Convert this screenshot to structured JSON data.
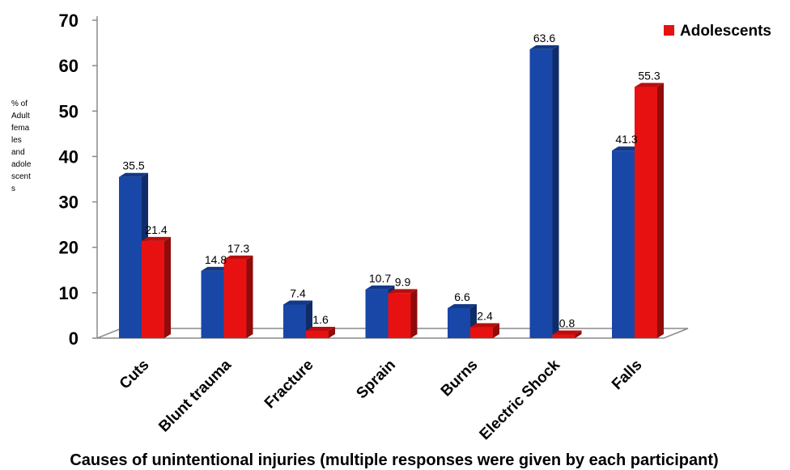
{
  "chart_data": {
    "type": "bar",
    "categories": [
      "Cuts",
      "Blunt trauma",
      "Fracture",
      "Sprain",
      "Burns",
      "Electric Shock",
      "Falls"
    ],
    "series": [
      {
        "name": "",
        "color": "#1847a8",
        "values": [
          35.5,
          14.8,
          7.4,
          10.7,
          6.6,
          63.6,
          41.3
        ]
      },
      {
        "name": "Adolescents",
        "color": "#e81111",
        "values": [
          21.4,
          17.3,
          1.6,
          9.9,
          2.4,
          0.8,
          55.3
        ]
      }
    ],
    "data_labels": [
      [
        "35.5",
        "14.8",
        "7.4",
        "10.7",
        "6.6",
        "63.6",
        "41.3"
      ],
      [
        "21.4",
        "17.3",
        "1.6",
        "9.9",
        "2.4",
        "0.8",
        "55.3"
      ]
    ],
    "ylim": [
      0,
      70
    ],
    "yticks": [
      0,
      10,
      20,
      30,
      40,
      50,
      60,
      70
    ],
    "ylabel_lines": [
      "% of",
      "Adult",
      "fema",
      "les",
      "and",
      "adole",
      "scent",
      "s"
    ],
    "xlabel": "Causes of unintentional injuries (multiple responses were given by each participant)",
    "legend": {
      "position": "top-right",
      "entries": [
        "Adolescents"
      ]
    },
    "grid": false,
    "style": "3d-column"
  }
}
